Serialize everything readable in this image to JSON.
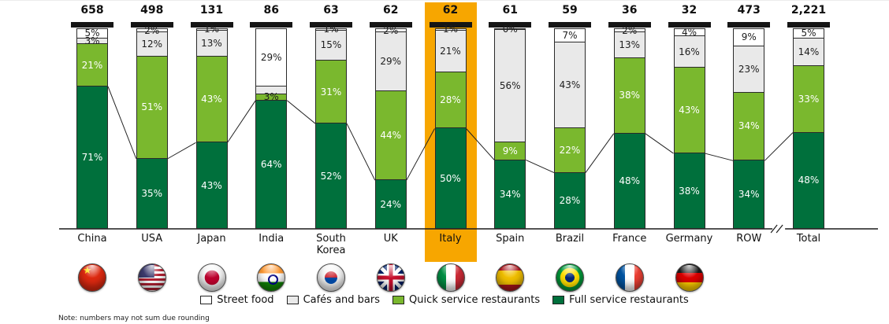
{
  "chart_data": {
    "type": "bar",
    "subtype": "100%-stacked-vertical-columns",
    "unit": "%",
    "stack_order_bottom_to_top": [
      "full_service",
      "quick_service",
      "cafes_bars",
      "street_food"
    ],
    "series_colors": {
      "street_food": "#ffffff",
      "cafes_bars": "#e9e9e9",
      "quick_service": "#7ab82e",
      "full_service": "#00703c"
    },
    "legend": [
      {
        "key": "street_food",
        "label": "Street food"
      },
      {
        "key": "cafes_bars",
        "label": "Cafés and bars"
      },
      {
        "key": "quick_service",
        "label": "Quick service restaurants"
      },
      {
        "key": "full_service",
        "label": "Full service restaurants"
      }
    ],
    "legend_position": "bottom-center",
    "highlight": {
      "country": "Italy",
      "color": "#f7a600"
    },
    "axis_break_between": [
      "ROW",
      "Total"
    ],
    "columns": [
      {
        "country": "China",
        "flag": "china",
        "total": "658",
        "values": {
          "full_service": 71,
          "quick_service": 21,
          "cafes_bars": 3,
          "street_food": 5
        }
      },
      {
        "country": "USA",
        "flag": "usa",
        "total": "498",
        "values": {
          "full_service": 35,
          "quick_service": 51,
          "cafes_bars": 12,
          "street_food": 2
        }
      },
      {
        "country": "Japan",
        "flag": "japan",
        "total": "131",
        "values": {
          "full_service": 43,
          "quick_service": 43,
          "cafes_bars": 13,
          "street_food": 1
        }
      },
      {
        "country": "India",
        "flag": "india",
        "total": "86",
        "values": {
          "full_service": 64,
          "quick_service": 3,
          "cafes_bars": 4,
          "street_food": 29
        },
        "shown_labels": {
          "cafes_bars": ""
        }
      },
      {
        "country": "South Korea",
        "flag": "south-korea",
        "total": "63",
        "values": {
          "full_service": 52,
          "quick_service": 31,
          "cafes_bars": 15,
          "street_food": 1
        }
      },
      {
        "country": "UK",
        "flag": "uk",
        "total": "62",
        "values": {
          "full_service": 24,
          "quick_service": 44,
          "cafes_bars": 29,
          "street_food": 2
        }
      },
      {
        "country": "Italy",
        "flag": "italy",
        "total": "62",
        "values": {
          "full_service": 50,
          "quick_service": 28,
          "cafes_bars": 21,
          "street_food": 1
        }
      },
      {
        "country": "Spain",
        "flag": "spain",
        "total": "61",
        "values": {
          "full_service": 34,
          "quick_service": 9,
          "cafes_bars": 56,
          "street_food": 0
        }
      },
      {
        "country": "Brazil",
        "flag": "brazil",
        "total": "59",
        "values": {
          "full_service": 28,
          "quick_service": 22,
          "cafes_bars": 43,
          "street_food": 7
        }
      },
      {
        "country": "France",
        "flag": "france",
        "total": "36",
        "values": {
          "full_service": 48,
          "quick_service": 38,
          "cafes_bars": 13,
          "street_food": 2
        }
      },
      {
        "country": "Germany",
        "flag": "germany",
        "total": "32",
        "values": {
          "full_service": 38,
          "quick_service": 43,
          "cafes_bars": 16,
          "street_food": 4
        }
      },
      {
        "country": "ROW",
        "flag": null,
        "total": "473",
        "values": {
          "full_service": 34,
          "quick_service": 34,
          "cafes_bars": 23,
          "street_food": 9
        }
      },
      {
        "country": "Total",
        "flag": null,
        "total": "2,221",
        "values": {
          "full_service": 48,
          "quick_service": 33,
          "cafes_bars": 14,
          "street_food": 5
        }
      }
    ],
    "note": "Note: numbers may not sum due rounding"
  }
}
